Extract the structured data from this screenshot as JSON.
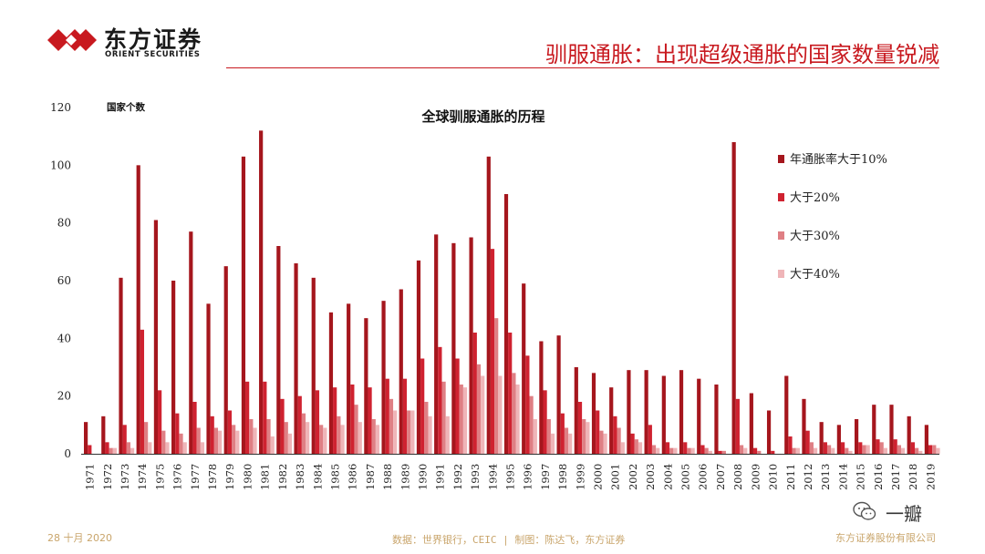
{
  "header": {
    "logo_cn": "东方证券",
    "logo_en": "ORIENT SECURITIES",
    "title": "驯服通胀：出现超级通胀的国家数量锐减"
  },
  "footer": {
    "date": "28 十月 2020",
    "source": "数据：世界银行，CEIC | 制图：陈达飞，东方证券",
    "company": "东方证券股份有限公司"
  },
  "watermark": {
    "text": "一瓣"
  },
  "colors": {
    "brand": "#c8191f",
    "s1": "#a5161d",
    "s2": "#cf2230",
    "s3": "#df7f84",
    "s4": "#efb5b8",
    "footer": "#c9a56b"
  },
  "chart_data": {
    "type": "bar",
    "title": "全球驯服通胀的历程",
    "ylabel": "国家个数",
    "xlabel": "",
    "ylim": [
      0,
      120
    ],
    "yticks": [
      0,
      20,
      40,
      60,
      80,
      100,
      120
    ],
    "grid": false,
    "legend": "right",
    "categories": [
      "1971",
      "1972",
      "1973",
      "1974",
      "1975",
      "1976",
      "1977",
      "1978",
      "1979",
      "1980",
      "1981",
      "1982",
      "1983",
      "1984",
      "1985",
      "1986",
      "1987",
      "1988",
      "1989",
      "1990",
      "1991",
      "1992",
      "1993",
      "1994",
      "1995",
      "1996",
      "1997",
      "1998",
      "1999",
      "2000",
      "2001",
      "2002",
      "2003",
      "2004",
      "2005",
      "2006",
      "2007",
      "2008",
      "2009",
      "2010",
      "2011",
      "2012",
      "2013",
      "2014",
      "2015",
      "2016",
      "2017",
      "2018",
      "2019"
    ],
    "series": [
      {
        "name": "年通胀率大于10%",
        "values": [
          11,
          13,
          61,
          100,
          81,
          60,
          77,
          52,
          65,
          103,
          112,
          72,
          66,
          61,
          49,
          52,
          47,
          53,
          57,
          67,
          76,
          73,
          75,
          103,
          90,
          59,
          39,
          41,
          30,
          28,
          23,
          29,
          29,
          27,
          29,
          26,
          24,
          108,
          21,
          15,
          27,
          19,
          11,
          10,
          12,
          17,
          17,
          13,
          10
        ]
      },
      {
        "name": "大于20%",
        "values": [
          3,
          4,
          10,
          43,
          22,
          14,
          18,
          13,
          15,
          25,
          25,
          19,
          20,
          22,
          23,
          24,
          23,
          26,
          26,
          33,
          37,
          33,
          42,
          71,
          42,
          34,
          22,
          14,
          18,
          15,
          13,
          7,
          10,
          4,
          4,
          3,
          1,
          19,
          2,
          1,
          6,
          8,
          4,
          4,
          4,
          5,
          5,
          4,
          3
        ]
      },
      {
        "name": "大于30%",
        "values": [
          0,
          2,
          4,
          11,
          8,
          7,
          9,
          9,
          10,
          12,
          12,
          11,
          14,
          10,
          13,
          17,
          12,
          19,
          15,
          18,
          25,
          24,
          31,
          47,
          28,
          20,
          12,
          9,
          12,
          8,
          9,
          5,
          3,
          2,
          2,
          2,
          1,
          3,
          1,
          0,
          2,
          4,
          3,
          2,
          3,
          4,
          3,
          2,
          3
        ]
      },
      {
        "name": "大于40%",
        "values": [
          0,
          2,
          2,
          4,
          4,
          4,
          4,
          8,
          8,
          9,
          6,
          7,
          11,
          9,
          10,
          11,
          10,
          15,
          15,
          13,
          13,
          23,
          27,
          27,
          24,
          12,
          7,
          7,
          11,
          7,
          4,
          4,
          2,
          2,
          2,
          1,
          0,
          2,
          0,
          0,
          2,
          2,
          2,
          1,
          3,
          2,
          2,
          1,
          2
        ]
      }
    ]
  }
}
